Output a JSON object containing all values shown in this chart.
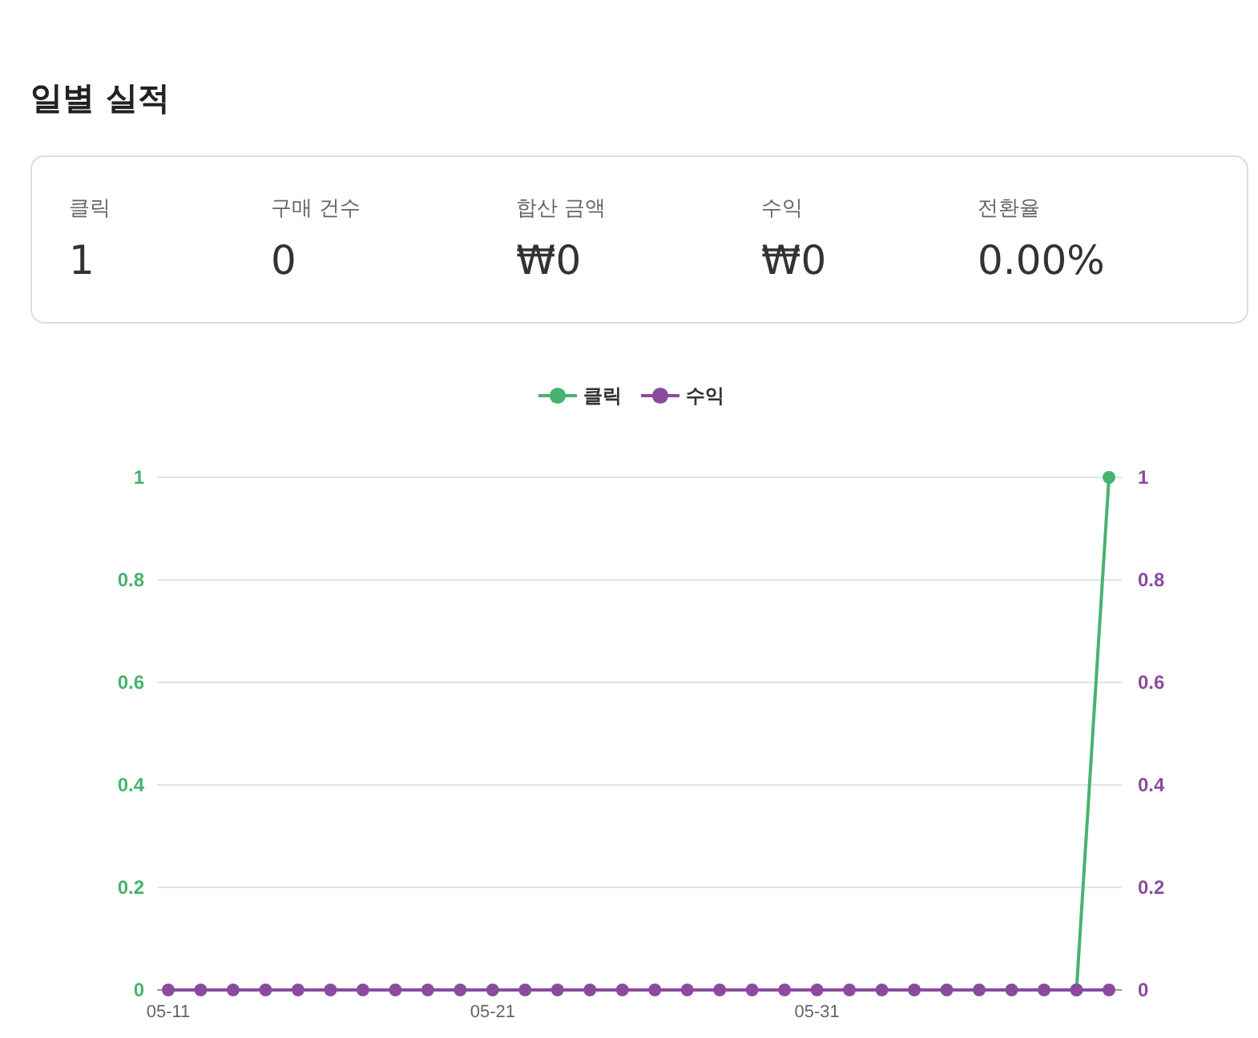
{
  "chart_data": [
    {
      "type": "other",
      "title": "일별 실적",
      "annotations": [
        "클릭",
        "1",
        "구매 건수",
        "0",
        "합산 금액",
        "₩0",
        "수익",
        "₩0",
        "전환율",
        "0.00%"
      ]
    },
    {
      "type": "line",
      "categories": [
        "05-11",
        null,
        null,
        null,
        null,
        null,
        null,
        null,
        null,
        null,
        "05-21",
        null,
        null,
        null,
        null,
        null,
        null,
        null,
        null,
        null,
        "05-31",
        null,
        null,
        null,
        null,
        null,
        null,
        null,
        null,
        null
      ],
      "series": [
        {
          "name": "클릭",
          "color": "#47b36f",
          "values": [
            null,
            null,
            null,
            null,
            null,
            null,
            null,
            null,
            null,
            null,
            null,
            null,
            null,
            null,
            null,
            null,
            null,
            null,
            null,
            null,
            null,
            null,
            null,
            null,
            null,
            null,
            null,
            null,
            0,
            1
          ]
        },
        {
          "name": "수익",
          "color": "#8a4b9e",
          "axis": "y2",
          "values": [
            0,
            0,
            0,
            0,
            0,
            0,
            0,
            0,
            0,
            0,
            0,
            0,
            0,
            0,
            0,
            0,
            0,
            0,
            0,
            0,
            0,
            0,
            0,
            0,
            0,
            0,
            0,
            0,
            0,
            0
          ]
        }
      ],
      "ylim": [
        0,
        1
      ],
      "yticks": [
        0,
        0.2,
        0.4,
        0.6,
        0.8,
        1
      ],
      "y2lim": [
        0,
        1
      ],
      "y2ticks": [
        0,
        0.2,
        0.4,
        0.6,
        0.8,
        1
      ],
      "grid": "y",
      "legend": "top",
      "marker": "circle",
      "line_style": "solid"
    }
  ]
}
